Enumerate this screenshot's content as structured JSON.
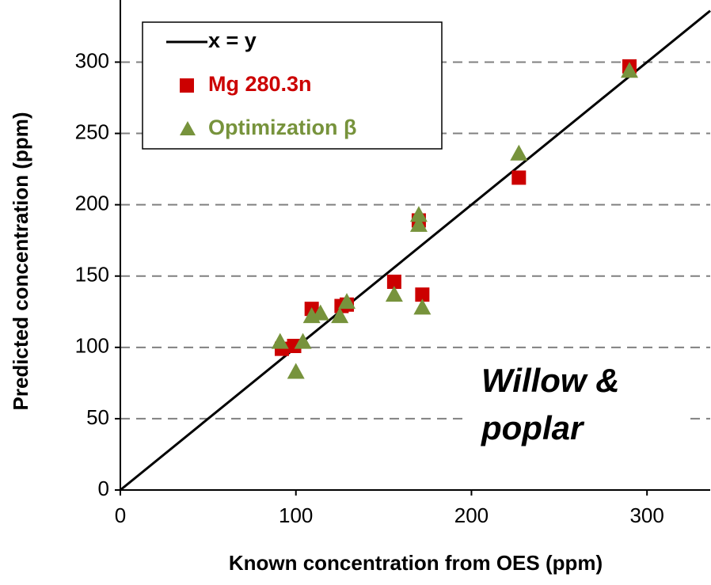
{
  "chart_data": {
    "type": "scatter",
    "xlabel": "Known concentration from OES (ppm)",
    "ylabel": "Predicted concentration (ppm)",
    "annotation": [
      "Willow &",
      "poplar"
    ],
    "xlim": [
      0,
      336
    ],
    "ylim": [
      0,
      338
    ],
    "xticks": [
      0,
      100,
      200,
      300
    ],
    "yticks": [
      0,
      50,
      100,
      150,
      200,
      250,
      300
    ],
    "grid": true,
    "legend": "upper left",
    "series": [
      {
        "name": "x = y",
        "type": "line",
        "color": "#000000",
        "x": [
          0,
          336
        ],
        "values": [
          0,
          336
        ]
      },
      {
        "name": "Mg 280.3n",
        "marker": "square",
        "color": "#cc0000",
        "x": [
          92,
          99,
          109,
          126,
          129,
          156,
          170,
          172,
          227,
          290
        ],
        "values": [
          99,
          101,
          127,
          129,
          130,
          146,
          189,
          137,
          219,
          297
        ]
      },
      {
        "name": "Optimization β",
        "marker": "triangle",
        "color": "#77933c",
        "x": [
          91,
          100,
          104,
          109,
          114,
          125,
          129,
          156,
          170,
          170,
          172,
          227,
          290
        ],
        "values": [
          104,
          83,
          104,
          122,
          124,
          122,
          132,
          137,
          193,
          186,
          128,
          236,
          294
        ]
      }
    ]
  }
}
